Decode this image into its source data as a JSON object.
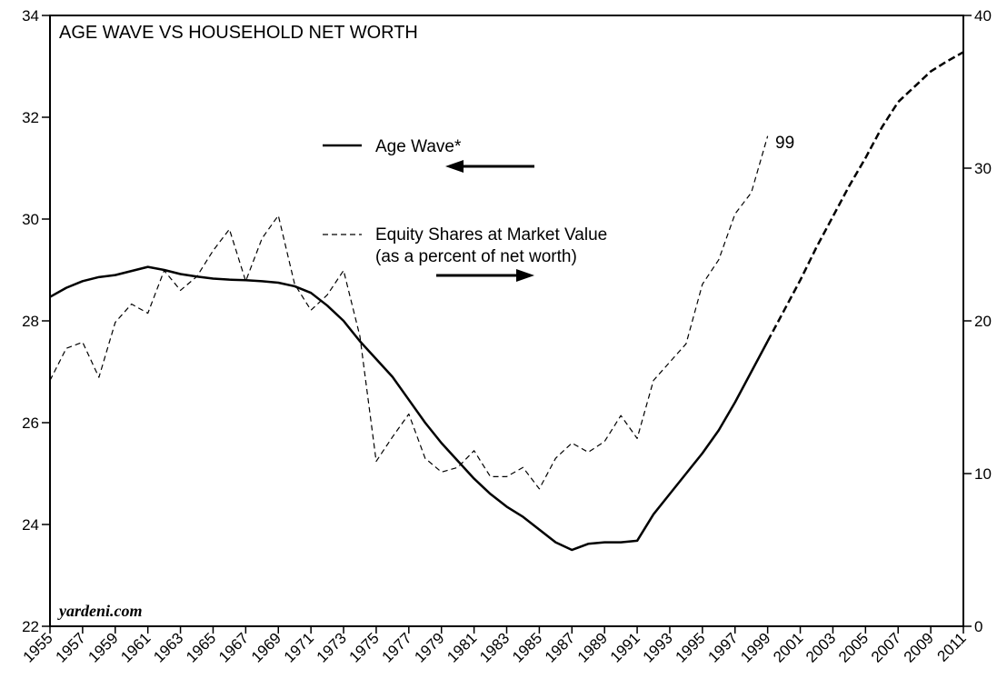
{
  "chart_data": {
    "type": "line",
    "title": "AGE WAVE VS HOUSEHOLD NET WORTH",
    "x": [
      1955,
      1956,
      1957,
      1958,
      1959,
      1960,
      1961,
      1962,
      1963,
      1964,
      1965,
      1966,
      1967,
      1968,
      1969,
      1970,
      1971,
      1972,
      1973,
      1974,
      1975,
      1976,
      1977,
      1978,
      1979,
      1980,
      1981,
      1982,
      1983,
      1984,
      1985,
      1986,
      1987,
      1988,
      1989,
      1990,
      1991,
      1992,
      1993,
      1994,
      1995,
      1996,
      1997,
      1998,
      1999,
      2000,
      2001,
      2002,
      2003,
      2004,
      2005,
      2006,
      2007,
      2008,
      2009,
      2010,
      2011
    ],
    "xlim": [
      1955,
      2011
    ],
    "xticks": [
      1955,
      1957,
      1959,
      1961,
      1963,
      1965,
      1967,
      1969,
      1971,
      1973,
      1975,
      1977,
      1979,
      1981,
      1983,
      1985,
      1987,
      1989,
      1991,
      1993,
      1995,
      1997,
      1999,
      2001,
      2003,
      2005,
      2007,
      2009,
      2011
    ],
    "ylim": [
      22,
      34
    ],
    "yticks": [
      22,
      24,
      26,
      28,
      30,
      32,
      34
    ],
    "y2lim": [
      0,
      40
    ],
    "y2ticks": [
      0,
      10,
      20,
      30,
      40
    ],
    "series": [
      {
        "name": "Age Wave*",
        "color": "#000000",
        "dash": false,
        "axis": "y",
        "values": [
          28.47,
          28.65,
          28.78,
          28.86,
          28.9,
          28.98,
          29.06,
          29.0,
          28.92,
          28.87,
          28.83,
          28.81,
          28.8,
          28.78,
          28.75,
          28.68,
          28.55,
          28.3,
          28.0,
          27.6,
          27.25,
          26.9,
          26.45,
          26.0,
          25.6,
          25.25,
          24.9,
          24.6,
          24.35,
          24.15,
          23.9,
          23.65,
          23.5,
          23.62,
          23.65,
          23.65,
          23.68,
          24.2,
          24.6,
          25.0,
          25.4,
          25.85,
          26.4,
          27.0,
          27.6,
          null,
          null,
          null,
          null,
          null,
          null,
          null,
          null,
          null,
          null,
          null,
          null
        ]
      },
      {
        "color": "#000000",
        "dash": true,
        "axis": "y",
        "values": [
          null,
          null,
          null,
          null,
          null,
          null,
          null,
          null,
          null,
          null,
          null,
          null,
          null,
          null,
          null,
          null,
          null,
          null,
          null,
          null,
          null,
          null,
          null,
          null,
          null,
          null,
          null,
          null,
          null,
          null,
          null,
          null,
          null,
          null,
          null,
          null,
          null,
          null,
          null,
          null,
          null,
          null,
          null,
          null,
          27.6,
          28.2,
          28.8,
          29.45,
          30.05,
          30.65,
          31.2,
          31.8,
          32.3,
          32.6,
          32.9,
          33.1,
          33.28
        ]
      },
      {
        "name": "Equity Shares at Market Value",
        "note": "(as a percent of net worth)",
        "color": "#000000",
        "dash": true,
        "axis": "y2",
        "values": [
          16.1,
          18.2,
          18.6,
          16.3,
          19.9,
          21.1,
          20.5,
          23.3,
          22.0,
          22.9,
          24.6,
          26.0,
          22.6,
          25.4,
          26.9,
          22.4,
          20.7,
          21.7,
          23.3,
          19.0,
          10.8,
          12.4,
          13.9,
          11.0,
          10.1,
          10.4,
          11.5,
          9.8,
          9.8,
          10.4,
          9.0,
          11.0,
          12.0,
          11.4,
          12.1,
          13.8,
          12.3,
          16.1,
          17.3,
          18.5,
          22.4,
          24.0,
          27.0,
          28.4,
          32.1,
          null,
          null,
          null,
          null,
          null,
          null,
          null,
          null,
          null,
          null,
          null,
          null
        ]
      }
    ],
    "annotations": [
      "99"
    ],
    "source": "yardeni.com"
  }
}
